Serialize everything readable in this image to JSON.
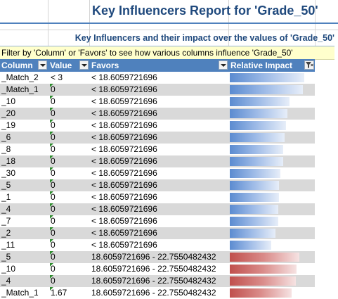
{
  "report": {
    "title": "Key Influencers Report for 'Grade_50'",
    "subtitle": "Key Influencers and their impact over the values of 'Grade_50'",
    "filter_hint": "Filter by 'Column' or 'Favors' to see how various columns influence 'Grade_50'"
  },
  "table": {
    "headers": {
      "column": "Column",
      "value": "Value",
      "favors": "Favors",
      "impact": "Relative Impact"
    },
    "colors": {
      "header_bg": "#4f81bd",
      "alt_row_bg": "#d9d9d9",
      "positive_bar": "#5b8bd0",
      "negative_bar": "#c0504d"
    },
    "rows": [
      {
        "column": "_Match_2",
        "value": "< 3",
        "favors": "< 18.6059721696",
        "impact": 1.0,
        "color": "blue",
        "flag": false
      },
      {
        "column": "_Match_1",
        "value": "0",
        "favors": "< 18.6059721696",
        "impact": 0.98,
        "color": "blue",
        "flag": true
      },
      {
        "column": "_10",
        "value": "0",
        "favors": "< 18.6059721696",
        "impact": 0.8,
        "color": "blue",
        "flag": true
      },
      {
        "column": "_20",
        "value": "0",
        "favors": "< 18.6059721696",
        "impact": 0.77,
        "color": "blue",
        "flag": true
      },
      {
        "column": "_19",
        "value": "0",
        "favors": "< 18.6059721696",
        "impact": 0.75,
        "color": "blue",
        "flag": true
      },
      {
        "column": "_6",
        "value": "0",
        "favors": "< 18.6059721696",
        "impact": 0.74,
        "color": "blue",
        "flag": true
      },
      {
        "column": "_8",
        "value": "0",
        "favors": "< 18.6059721696",
        "impact": 0.72,
        "color": "blue",
        "flag": true
      },
      {
        "column": "_18",
        "value": "0",
        "favors": "< 18.6059721696",
        "impact": 0.72,
        "color": "blue",
        "flag": true
      },
      {
        "column": "_30",
        "value": "0",
        "favors": "< 18.6059721696",
        "impact": 0.68,
        "color": "blue",
        "flag": true
      },
      {
        "column": "_5",
        "value": "0",
        "favors": "< 18.6059721696",
        "impact": 0.66,
        "color": "blue",
        "flag": true
      },
      {
        "column": "_1",
        "value": "0",
        "favors": "< 18.6059721696",
        "impact": 0.66,
        "color": "blue",
        "flag": true
      },
      {
        "column": "_4",
        "value": "0",
        "favors": "< 18.6059721696",
        "impact": 0.65,
        "color": "blue",
        "flag": true
      },
      {
        "column": "_7",
        "value": "0",
        "favors": "< 18.6059721696",
        "impact": 0.65,
        "color": "blue",
        "flag": true
      },
      {
        "column": "_2",
        "value": "0",
        "favors": "< 18.6059721696",
        "impact": 0.61,
        "color": "blue",
        "flag": true
      },
      {
        "column": "_11",
        "value": "0",
        "favors": "< 18.6059721696",
        "impact": 0.56,
        "color": "blue",
        "flag": true
      },
      {
        "column": "_5",
        "value": "0",
        "favors": "18.6059721696 - 22.7550482432",
        "impact": 0.93,
        "color": "red",
        "flag": true
      },
      {
        "column": "_10",
        "value": "0",
        "favors": "18.6059721696 - 22.7550482432",
        "impact": 0.9,
        "color": "red",
        "flag": true
      },
      {
        "column": "_4",
        "value": "0",
        "favors": "18.6059721696 - 22.7550482432",
        "impact": 0.89,
        "color": "red",
        "flag": true
      },
      {
        "column": "_Match_1",
        "value": "1.67",
        "favors": "18.6059721696 - 22.7550482432",
        "impact": 0.83,
        "color": "red",
        "flag": true
      }
    ]
  }
}
